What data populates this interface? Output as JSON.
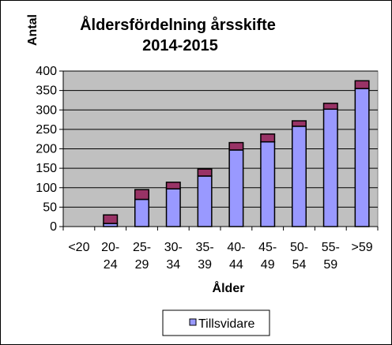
{
  "chart_data": {
    "type": "bar",
    "stacked": true,
    "title_lines": [
      "Åldersfördelning årsskifte",
      "2014-2015"
    ],
    "xlabel": "Ålder",
    "ylabel": "Antal",
    "ylim": [
      0,
      400
    ],
    "yticks": [
      0,
      50,
      100,
      150,
      200,
      250,
      300,
      350,
      400
    ],
    "categories": [
      [
        "<20"
      ],
      [
        "20-",
        "24"
      ],
      [
        "25-",
        "29"
      ],
      [
        "30-",
        "34"
      ],
      [
        "35-",
        "39"
      ],
      [
        "40-",
        "44"
      ],
      [
        "45-",
        "49"
      ],
      [
        "50-",
        "54"
      ],
      [
        "55-",
        "59"
      ],
      [
        ">59"
      ]
    ],
    "series": [
      {
        "name": "Tillsvidare",
        "color": "#9999FF",
        "values": [
          0,
          8,
          70,
          97,
          130,
          197,
          218,
          258,
          302,
          355
        ]
      },
      {
        "color": "#993366",
        "values": [
          0,
          22,
          25,
          17,
          18,
          19,
          20,
          14,
          15,
          20
        ]
      }
    ],
    "grid": true,
    "plot_background": "#C0C0C0",
    "legend_position": "bottom"
  }
}
